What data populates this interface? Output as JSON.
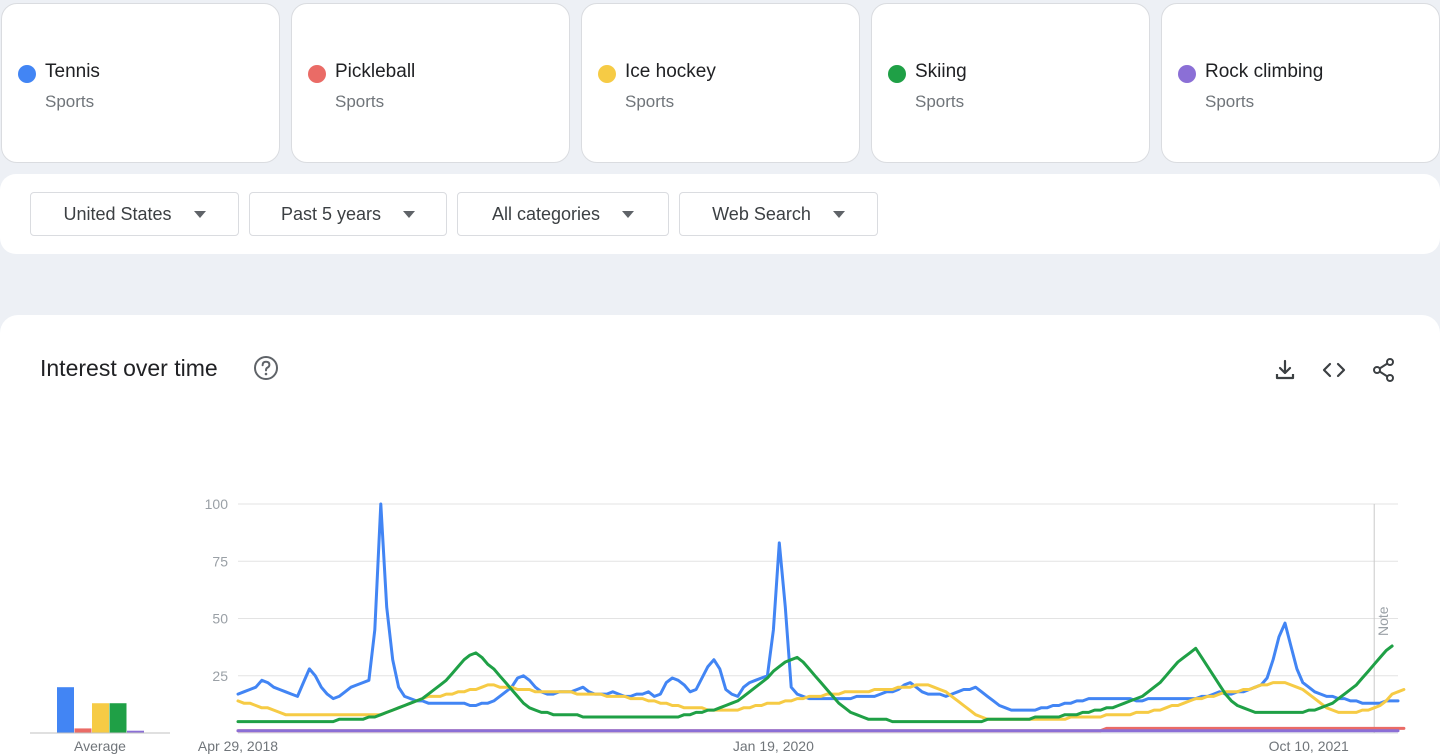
{
  "terms": [
    {
      "label": "Tennis",
      "category": "Sports",
      "color": "#4285f4"
    },
    {
      "label": "Pickleball",
      "category": "Sports",
      "color": "#ea6b66"
    },
    {
      "label": "Ice hockey",
      "category": "Sports",
      "color": "#f6cb45"
    },
    {
      "label": "Skiing",
      "category": "Sports",
      "color": "#1fa046"
    },
    {
      "label": "Rock climbing",
      "category": "Sports",
      "color": "#8b6fd6"
    }
  ],
  "filters": {
    "region": "United States",
    "time": "Past 5 years",
    "category": "All categories",
    "search_type": "Web Search"
  },
  "panel": {
    "title": "Interest over time",
    "average_label": "Average",
    "note_label": "Note"
  },
  "icons": {
    "help": "help-circle-icon",
    "download": "download-icon",
    "embed": "code-embed-icon",
    "share": "share-icon"
  },
  "chart_data": {
    "type": "line",
    "ylim": [
      0,
      100
    ],
    "y_ticks": [
      25,
      50,
      75,
      100
    ],
    "x_ticks": [
      "Apr 29, 2018",
      "Jan 19, 2020",
      "Oct 10, 2021"
    ],
    "x_tick_index": [
      0,
      90,
      180
    ],
    "note_index": 191,
    "averages": [
      20,
      2,
      13,
      13,
      1
    ],
    "series": [
      {
        "name": "Tennis",
        "color": "#4285f4",
        "values": [
          17,
          18,
          19,
          20,
          23,
          22,
          20,
          19,
          18,
          17,
          16,
          22,
          28,
          25,
          20,
          17,
          15,
          16,
          18,
          20,
          21,
          22,
          23,
          45,
          100,
          55,
          32,
          20,
          16,
          15,
          14,
          14,
          13,
          13,
          13,
          13,
          13,
          13,
          13,
          12,
          12,
          13,
          13,
          14,
          16,
          18,
          20,
          24,
          25,
          23,
          20,
          18,
          17,
          17,
          18,
          18,
          18,
          19,
          20,
          18,
          17,
          17,
          17,
          18,
          17,
          16,
          16,
          17,
          17,
          18,
          16,
          17,
          22,
          24,
          23,
          21,
          18,
          19,
          24,
          29,
          32,
          28,
          19,
          17,
          16,
          20,
          22,
          23,
          24,
          25,
          45,
          83,
          55,
          20,
          17,
          16,
          15,
          15,
          15,
          15,
          15,
          15,
          15,
          15,
          16,
          16,
          16,
          16,
          17,
          18,
          18,
          19,
          21,
          22,
          20,
          18,
          17,
          17,
          17,
          16,
          17,
          18,
          19,
          19,
          20,
          18,
          16,
          14,
          12,
          11,
          10,
          10,
          10,
          10,
          10,
          11,
          11,
          12,
          12,
          13,
          13,
          14,
          14,
          15,
          15,
          15,
          15,
          15,
          15,
          15,
          15,
          14,
          14,
          15,
          15,
          15,
          15,
          15,
          15,
          15,
          15,
          15,
          16,
          16,
          17,
          18,
          17,
          17,
          18,
          18,
          19,
          20,
          21,
          24,
          32,
          42,
          48,
          38,
          28,
          22,
          20,
          18,
          17,
          16,
          16,
          15,
          15,
          14,
          14,
          13,
          13,
          13,
          13,
          14,
          14,
          14
        ]
      },
      {
        "name": "Pickleball",
        "color": "#ea6b66",
        "values": [
          1,
          1,
          1,
          1,
          1,
          1,
          1,
          1,
          1,
          1,
          1,
          1,
          1,
          1,
          1,
          1,
          1,
          1,
          1,
          1,
          1,
          1,
          1,
          1,
          1,
          1,
          1,
          1,
          1,
          1,
          1,
          1,
          1,
          1,
          1,
          1,
          1,
          1,
          1,
          1,
          1,
          1,
          1,
          1,
          1,
          1,
          1,
          1,
          1,
          1,
          1,
          1,
          1,
          1,
          1,
          1,
          1,
          1,
          1,
          1,
          1,
          1,
          1,
          1,
          1,
          1,
          1,
          1,
          1,
          1,
          1,
          1,
          1,
          1,
          1,
          1,
          1,
          1,
          1,
          1,
          1,
          1,
          1,
          1,
          1,
          1,
          1,
          1,
          1,
          1,
          1,
          1,
          1,
          1,
          1,
          1,
          1,
          1,
          1,
          1,
          1,
          1,
          1,
          1,
          1,
          1,
          1,
          1,
          1,
          1,
          1,
          1,
          1,
          1,
          1,
          1,
          1,
          1,
          1,
          1,
          1,
          1,
          1,
          1,
          1,
          1,
          1,
          1,
          1,
          1,
          1,
          1,
          1,
          1,
          1,
          1,
          1,
          1,
          1,
          1,
          1,
          1,
          1,
          1,
          1,
          1,
          2,
          2,
          2,
          2,
          2,
          2,
          2,
          2,
          2,
          2,
          2,
          2,
          2,
          2,
          2,
          2,
          2,
          2,
          2,
          2,
          2,
          2,
          2,
          2,
          2,
          2,
          2,
          2,
          2,
          2,
          2,
          2,
          2,
          2,
          2,
          2,
          2,
          2,
          2,
          2,
          2,
          2,
          2,
          2,
          2,
          2,
          2,
          2,
          2,
          2,
          2
        ]
      },
      {
        "name": "Ice hockey",
        "color": "#f6cb45",
        "values": [
          14,
          13,
          13,
          12,
          11,
          11,
          10,
          9,
          8,
          8,
          8,
          8,
          8,
          8,
          8,
          8,
          8,
          8,
          8,
          8,
          8,
          8,
          8,
          8,
          8,
          9,
          10,
          11,
          12,
          13,
          14,
          15,
          16,
          16,
          16,
          17,
          17,
          18,
          18,
          19,
          19,
          20,
          21,
          21,
          20,
          20,
          20,
          19,
          19,
          19,
          18,
          18,
          18,
          18,
          18,
          18,
          18,
          17,
          17,
          17,
          17,
          17,
          16,
          16,
          16,
          16,
          15,
          15,
          15,
          14,
          14,
          13,
          13,
          12,
          12,
          11,
          11,
          11,
          11,
          10,
          10,
          10,
          10,
          10,
          10,
          11,
          11,
          12,
          12,
          13,
          13,
          13,
          14,
          14,
          15,
          15,
          16,
          16,
          16,
          17,
          17,
          17,
          18,
          18,
          18,
          18,
          18,
          19,
          19,
          19,
          19,
          20,
          20,
          20,
          21,
          21,
          21,
          20,
          19,
          18,
          16,
          14,
          12,
          10,
          8,
          7,
          6,
          6,
          6,
          6,
          6,
          6,
          6,
          6,
          6,
          6,
          6,
          6,
          6,
          6,
          7,
          7,
          7,
          7,
          7,
          7,
          8,
          8,
          8,
          8,
          8,
          9,
          9,
          9,
          10,
          10,
          11,
          12,
          12,
          13,
          14,
          15,
          15,
          16,
          16,
          17,
          18,
          18,
          18,
          19,
          19,
          20,
          21,
          21,
          22,
          22,
          22,
          21,
          20,
          19,
          17,
          15,
          13,
          11,
          10,
          9,
          9,
          9,
          9,
          10,
          10,
          11,
          12,
          14,
          17,
          18,
          19
        ]
      },
      {
        "name": "Skiing",
        "color": "#1fa046",
        "values": [
          5,
          5,
          5,
          5,
          5,
          5,
          5,
          5,
          5,
          5,
          5,
          5,
          5,
          5,
          5,
          5,
          5,
          6,
          6,
          6,
          6,
          6,
          7,
          7,
          8,
          9,
          10,
          11,
          12,
          13,
          14,
          15,
          17,
          19,
          21,
          23,
          26,
          29,
          32,
          34,
          35,
          33,
          30,
          28,
          25,
          22,
          19,
          16,
          13,
          11,
          10,
          9,
          9,
          8,
          8,
          8,
          8,
          8,
          7,
          7,
          7,
          7,
          7,
          7,
          7,
          7,
          7,
          7,
          7,
          7,
          7,
          7,
          7,
          7,
          7,
          8,
          8,
          9,
          9,
          10,
          10,
          11,
          12,
          13,
          14,
          16,
          18,
          20,
          22,
          24,
          27,
          29,
          31,
          32,
          33,
          31,
          28,
          25,
          22,
          19,
          16,
          13,
          11,
          9,
          8,
          7,
          6,
          6,
          6,
          6,
          5,
          5,
          5,
          5,
          5,
          5,
          5,
          5,
          5,
          5,
          5,
          5,
          5,
          5,
          5,
          5,
          6,
          6,
          6,
          6,
          6,
          6,
          6,
          6,
          7,
          7,
          7,
          7,
          7,
          8,
          8,
          8,
          9,
          9,
          10,
          10,
          11,
          11,
          12,
          13,
          14,
          15,
          16,
          18,
          20,
          22,
          25,
          28,
          31,
          33,
          35,
          37,
          33,
          29,
          25,
          21,
          17,
          14,
          12,
          11,
          10,
          9,
          9,
          9,
          9,
          9,
          9,
          9,
          9,
          9,
          10,
          10,
          11,
          12,
          13,
          15,
          17,
          19,
          21,
          24,
          27,
          30,
          33,
          36,
          38
        ]
      },
      {
        "name": "Rock climbing",
        "color": "#8b6fd6",
        "values": [
          1,
          1,
          1,
          1,
          1,
          1,
          1,
          1,
          1,
          1,
          1,
          1,
          1,
          1,
          1,
          1,
          1,
          1,
          1,
          1,
          1,
          1,
          1,
          1,
          1,
          1,
          1,
          1,
          1,
          1,
          1,
          1,
          1,
          1,
          1,
          1,
          1,
          1,
          1,
          1,
          1,
          1,
          1,
          1,
          1,
          1,
          1,
          1,
          1,
          1,
          1,
          1,
          1,
          1,
          1,
          1,
          1,
          1,
          1,
          1,
          1,
          1,
          1,
          1,
          1,
          1,
          1,
          1,
          1,
          1,
          1,
          1,
          1,
          1,
          1,
          1,
          1,
          1,
          1,
          1,
          1,
          1,
          1,
          1,
          1,
          1,
          1,
          1,
          1,
          1,
          1,
          1,
          1,
          1,
          1,
          1,
          1,
          1,
          1,
          1,
          1,
          1,
          1,
          1,
          1,
          1,
          1,
          1,
          1,
          1,
          1,
          1,
          1,
          1,
          1,
          1,
          1,
          1,
          1,
          1,
          1,
          1,
          1,
          1,
          1,
          1,
          1,
          1,
          1,
          1,
          1,
          1,
          1,
          1,
          1,
          1,
          1,
          1,
          1,
          1,
          1,
          1,
          1,
          1,
          1,
          1,
          1,
          1,
          1,
          1,
          1,
          1,
          1,
          1,
          1,
          1,
          1,
          1,
          1,
          1,
          1,
          1,
          1,
          1,
          1,
          1,
          1,
          1,
          1,
          1,
          1,
          1,
          1,
          1,
          1,
          1,
          1,
          1,
          1,
          1,
          1,
          1,
          1,
          1,
          1,
          1,
          1,
          1,
          1,
          1,
          1,
          1,
          1,
          1,
          1,
          1
        ]
      }
    ]
  }
}
